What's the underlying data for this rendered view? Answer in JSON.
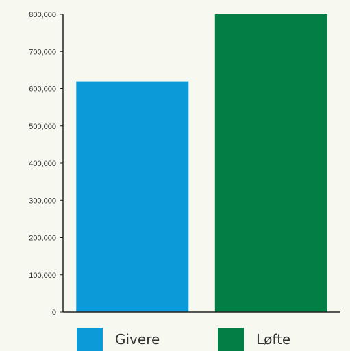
{
  "chart_data": {
    "type": "bar",
    "categories": [
      "Givere",
      "Løfte"
    ],
    "values": [
      620000,
      800000
    ],
    "colors": [
      "#0d9ad9",
      "#037f45"
    ],
    "ylim": [
      0,
      800000
    ],
    "yticks": [
      "0",
      "100,000",
      "200,000",
      "300,000",
      "400,000",
      "500,000",
      "600,000",
      "700,000",
      "800,000"
    ],
    "ytick_values": [
      0,
      100000,
      200000,
      300000,
      400000,
      500000,
      600000,
      700000,
      800000
    ],
    "grid": false,
    "legend_position": "bottom"
  },
  "legend": {
    "items": [
      {
        "label": "Givere",
        "color": "#0d9ad9"
      },
      {
        "label": "Løfte",
        "color": "#037f45"
      }
    ]
  },
  "background": "#f7f9f1"
}
